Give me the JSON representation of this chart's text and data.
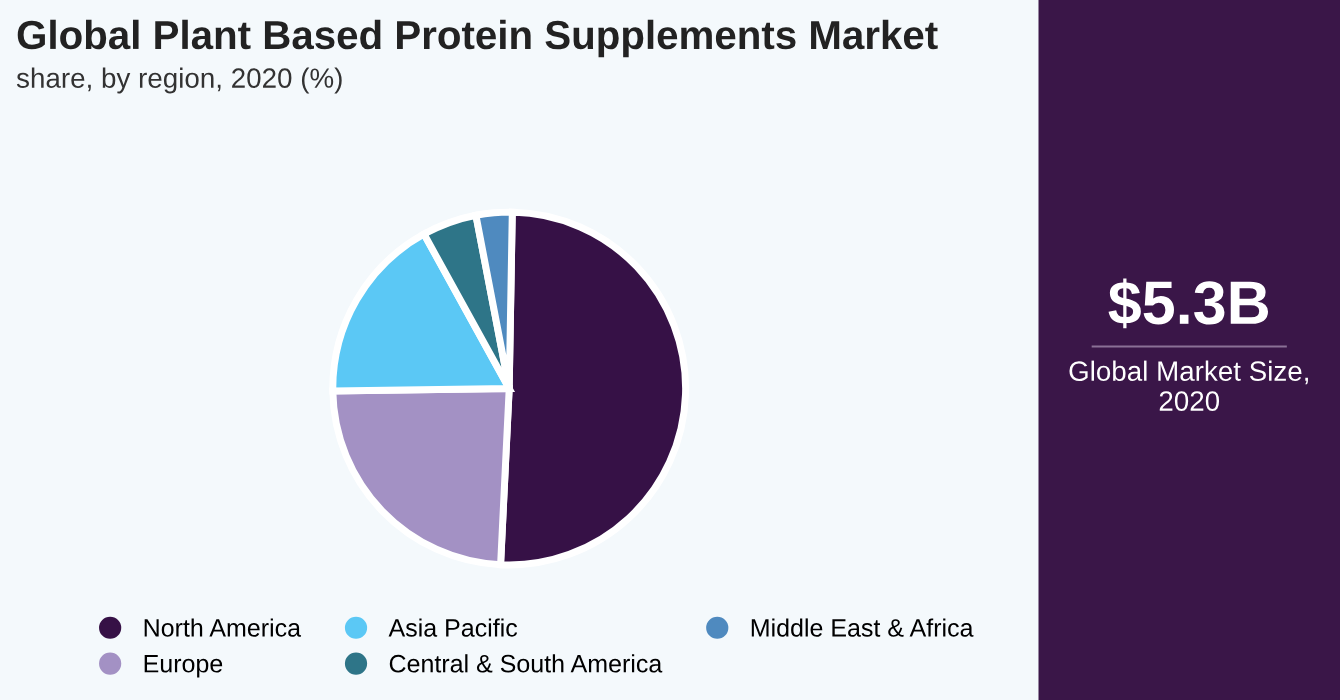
{
  "chart_data": [
    {
      "type": "pie",
      "title": "Global Plant Based Protein Supplements Market",
      "subtitle": "share, by region, 2020 (%)",
      "categories": [
        "North America",
        "Europe",
        "Asia Pacific",
        "Central & South America",
        "Middle East & Africa"
      ],
      "values": [
        50.5,
        24,
        17.2,
        5,
        3.3
      ],
      "colors": [
        "#361146",
        "#a391c4",
        "#5bc8f5",
        "#2e7588",
        "#4f8abf"
      ],
      "legend": "bottom"
    },
    {
      "type": "other",
      "title": "$5.3B",
      "subtitle": "Global Market Size, 2020"
    }
  ]
}
